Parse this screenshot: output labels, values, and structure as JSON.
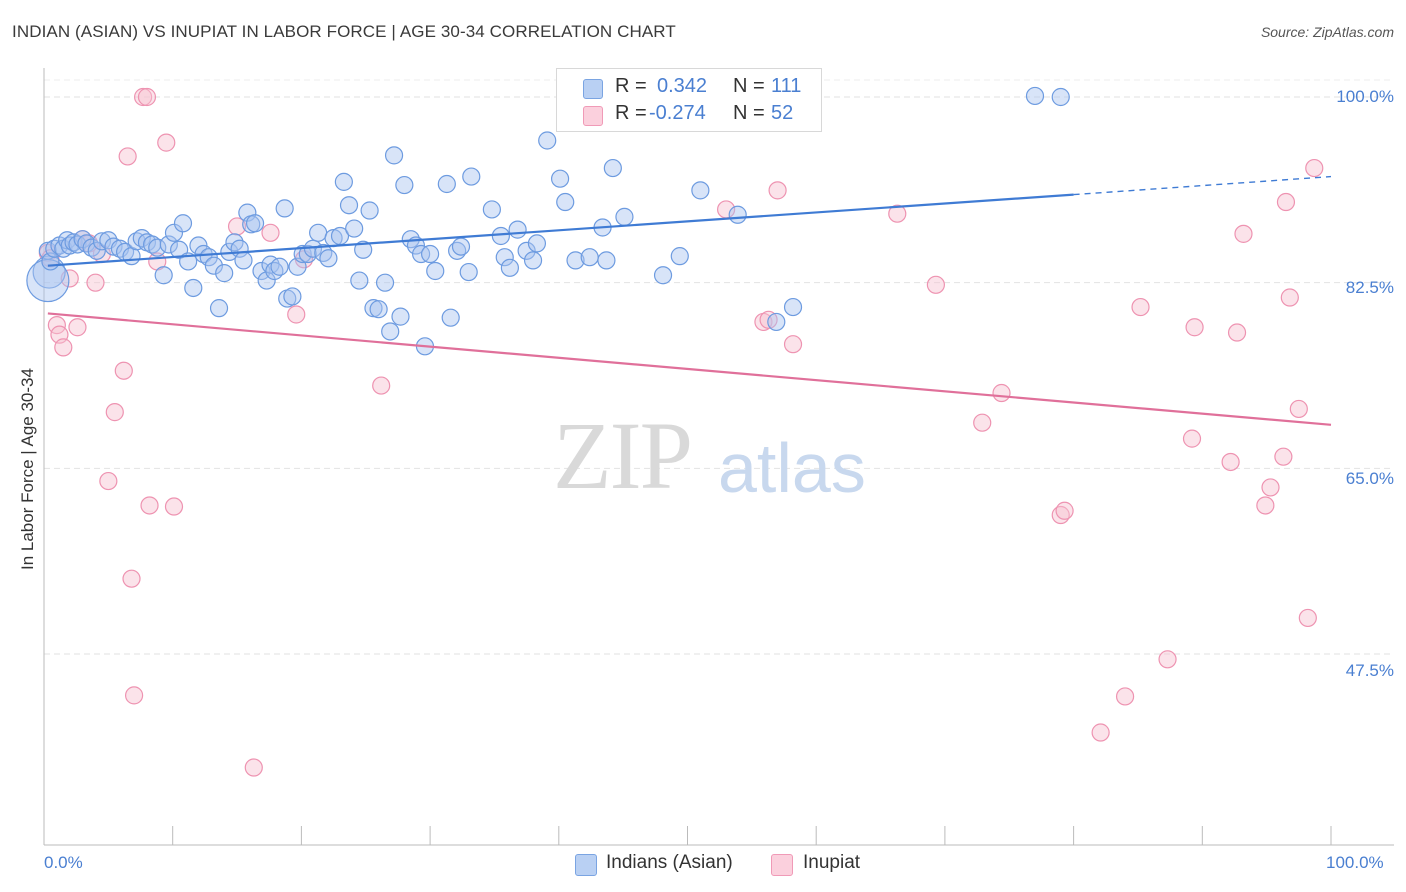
{
  "header": {
    "title": "INDIAN (ASIAN) VS INUPIAT IN LABOR FORCE | AGE 30-34 CORRELATION CHART",
    "source": "Source: ZipAtlas.com"
  },
  "watermark": {
    "zip": "ZIP",
    "atlas": "atlas"
  },
  "legend": {
    "r_label": "R =",
    "n_label": "N =",
    "series": [
      {
        "name": "Indians (Asian)",
        "r": "0.342",
        "n": "111",
        "color": "#8fb3e8"
      },
      {
        "name": "Inupiat",
        "r": "-0.274",
        "n": "52",
        "color": "#f4a8c0"
      }
    ]
  },
  "colors": {
    "blue_fill": "#a9c4ef",
    "blue_stroke": "#6d9be0",
    "blue_line": "#3f7bd4",
    "pink_fill": "#f7c0d1",
    "pink_stroke": "#ee93b1",
    "pink_line": "#e0709a",
    "tick_label": "#4a7fd1"
  },
  "chart_data": {
    "type": "scatter",
    "title": "INDIAN (ASIAN) VS INUPIAT IN LABOR FORCE | AGE 30-34 CORRELATION CHART",
    "xlabel": "",
    "ylabel": "In Labor Force | Age 30-34",
    "xlim": [
      0,
      100
    ],
    "ylim": [
      30,
      101
    ],
    "x_tick_labels": [
      "0.0%",
      "100.0%"
    ],
    "y_ticks": [
      47.5,
      65.0,
      82.5,
      100.0
    ],
    "y_tick_labels": [
      "47.5%",
      "65.0%",
      "82.5%",
      "100.0%"
    ],
    "grid": true,
    "legend_position": "top-center",
    "series": [
      {
        "name": "Indians (Asian)",
        "trend": {
          "x": [
            0.3,
            80.0,
            100.0
          ],
          "y": [
            84.1,
            90.8,
            92.5
          ],
          "dashed_from_x": 80.0
        },
        "points": [
          [
            0.3,
            85.5
          ],
          [
            0.5,
            84.5
          ],
          [
            0.8,
            85.7
          ],
          [
            1.2,
            86.0
          ],
          [
            1.5,
            85.7
          ],
          [
            1.8,
            86.5
          ],
          [
            2.0,
            86.0
          ],
          [
            2.3,
            86.3
          ],
          [
            2.6,
            86.1
          ],
          [
            3.0,
            86.6
          ],
          [
            3.3,
            86.2
          ],
          [
            3.7,
            85.8
          ],
          [
            4.1,
            85.5
          ],
          [
            4.5,
            86.4
          ],
          [
            5.0,
            86.5
          ],
          [
            5.4,
            85.9
          ],
          [
            5.9,
            85.7
          ],
          [
            6.3,
            85.4
          ],
          [
            6.8,
            85.0
          ],
          [
            7.2,
            86.4
          ],
          [
            7.6,
            86.7
          ],
          [
            8.0,
            86.3
          ],
          [
            8.4,
            86.1
          ],
          [
            8.8,
            85.8
          ],
          [
            9.3,
            83.2
          ],
          [
            9.7,
            86.1
          ],
          [
            10.1,
            87.2
          ],
          [
            10.5,
            85.6
          ],
          [
            10.8,
            88.1
          ],
          [
            11.2,
            84.5
          ],
          [
            11.6,
            82.0
          ],
          [
            12.0,
            86.0
          ],
          [
            12.4,
            85.2
          ],
          [
            12.8,
            84.9
          ],
          [
            13.2,
            84.1
          ],
          [
            13.6,
            80.1
          ],
          [
            14.0,
            83.4
          ],
          [
            14.4,
            85.4
          ],
          [
            14.8,
            86.3
          ],
          [
            15.2,
            85.7
          ],
          [
            15.5,
            84.6
          ],
          [
            15.8,
            89.1
          ],
          [
            16.1,
            88.0
          ],
          [
            16.4,
            88.1
          ],
          [
            16.9,
            83.6
          ],
          [
            17.3,
            82.7
          ],
          [
            17.6,
            84.2
          ],
          [
            17.9,
            83.6
          ],
          [
            18.3,
            84.0
          ],
          [
            18.7,
            89.5
          ],
          [
            18.9,
            81.0
          ],
          [
            19.3,
            81.2
          ],
          [
            19.7,
            84.0
          ],
          [
            20.1,
            85.2
          ],
          [
            20.5,
            85.2
          ],
          [
            20.9,
            85.7
          ],
          [
            21.3,
            87.2
          ],
          [
            21.7,
            85.3
          ],
          [
            22.1,
            84.8
          ],
          [
            22.5,
            86.7
          ],
          [
            23.0,
            86.9
          ],
          [
            23.3,
            92.0
          ],
          [
            23.7,
            89.8
          ],
          [
            24.1,
            87.6
          ],
          [
            24.5,
            82.7
          ],
          [
            24.8,
            85.6
          ],
          [
            25.3,
            89.3
          ],
          [
            25.6,
            80.1
          ],
          [
            26.0,
            80.0
          ],
          [
            26.5,
            82.5
          ],
          [
            26.9,
            77.9
          ],
          [
            27.2,
            94.5
          ],
          [
            27.7,
            79.3
          ],
          [
            28.0,
            91.7
          ],
          [
            28.5,
            86.6
          ],
          [
            28.9,
            86.0
          ],
          [
            29.3,
            85.2
          ],
          [
            29.6,
            76.5
          ],
          [
            30.0,
            85.2
          ],
          [
            30.4,
            83.6
          ],
          [
            31.3,
            91.8
          ],
          [
            31.6,
            79.2
          ],
          [
            32.1,
            85.5
          ],
          [
            32.4,
            85.9
          ],
          [
            33.0,
            83.5
          ],
          [
            33.2,
            92.5
          ],
          [
            34.8,
            89.4
          ],
          [
            35.5,
            86.9
          ],
          [
            35.8,
            84.9
          ],
          [
            36.2,
            83.9
          ],
          [
            36.8,
            87.5
          ],
          [
            37.5,
            85.5
          ],
          [
            38.0,
            84.6
          ],
          [
            38.3,
            86.2
          ],
          [
            39.1,
            95.9
          ],
          [
            40.1,
            92.3
          ],
          [
            40.5,
            90.1
          ],
          [
            41.3,
            84.6
          ],
          [
            42.4,
            84.9
          ],
          [
            43.4,
            87.7
          ],
          [
            43.7,
            84.6
          ],
          [
            44.2,
            93.3
          ],
          [
            45.1,
            88.7
          ],
          [
            46.9,
            100.1
          ],
          [
            48.1,
            83.2
          ],
          [
            49.4,
            85.0
          ],
          [
            51.0,
            91.2
          ],
          [
            53.9,
            88.9
          ],
          [
            56.9,
            78.8
          ],
          [
            58.2,
            80.2
          ],
          [
            77.0,
            100.1
          ],
          [
            79.0,
            100.0
          ]
        ],
        "large_points": [
          [
            0.4,
            83.5
          ],
          [
            0.3,
            82.7
          ]
        ]
      },
      {
        "name": "Inupiat",
        "trend": {
          "x": [
            0.3,
            100.0
          ],
          "y": [
            79.6,
            69.1
          ]
        },
        "points": [
          [
            0.3,
            85.3
          ],
          [
            0.5,
            84.8
          ],
          [
            1.0,
            78.5
          ],
          [
            1.2,
            77.6
          ],
          [
            1.5,
            76.4
          ],
          [
            2.0,
            82.9
          ],
          [
            2.6,
            78.3
          ],
          [
            3.0,
            86.6
          ],
          [
            3.5,
            86.2
          ],
          [
            4.0,
            82.5
          ],
          [
            4.5,
            85.2
          ],
          [
            5.0,
            63.8
          ],
          [
            5.5,
            70.3
          ],
          [
            6.2,
            74.2
          ],
          [
            6.5,
            94.4
          ],
          [
            6.8,
            54.6
          ],
          [
            7.0,
            43.6
          ],
          [
            7.7,
            100.0
          ],
          [
            8.0,
            100.0
          ],
          [
            8.2,
            61.5
          ],
          [
            8.8,
            84.5
          ],
          [
            9.5,
            95.7
          ],
          [
            10.1,
            61.4
          ],
          [
            15.0,
            87.8
          ],
          [
            16.3,
            36.8
          ],
          [
            17.6,
            87.2
          ],
          [
            19.6,
            79.5
          ],
          [
            20.2,
            84.7
          ],
          [
            26.2,
            72.8
          ],
          [
            53.0,
            89.4
          ],
          [
            55.9,
            78.8
          ],
          [
            56.3,
            79.0
          ],
          [
            57.0,
            91.2
          ],
          [
            58.2,
            76.7
          ],
          [
            66.3,
            89.0
          ],
          [
            69.3,
            82.3
          ],
          [
            72.9,
            69.3
          ],
          [
            74.4,
            72.1
          ],
          [
            79.0,
            60.6
          ],
          [
            79.3,
            61.0
          ],
          [
            82.1,
            40.1
          ],
          [
            84.0,
            43.5
          ],
          [
            85.2,
            80.2
          ],
          [
            87.3,
            47.0
          ],
          [
            89.2,
            67.8
          ],
          [
            89.4,
            78.3
          ],
          [
            92.2,
            65.6
          ],
          [
            92.7,
            77.8
          ],
          [
            93.2,
            87.1
          ],
          [
            94.9,
            61.5
          ],
          [
            95.3,
            63.2
          ],
          [
            96.3,
            66.1
          ],
          [
            96.5,
            90.1
          ],
          [
            96.8,
            81.1
          ],
          [
            97.5,
            70.6
          ],
          [
            98.2,
            50.9
          ],
          [
            98.7,
            93.3
          ]
        ]
      }
    ]
  },
  "bottom_legend": {
    "blue_label": "Indians (Asian)",
    "pink_label": "Inupiat"
  }
}
